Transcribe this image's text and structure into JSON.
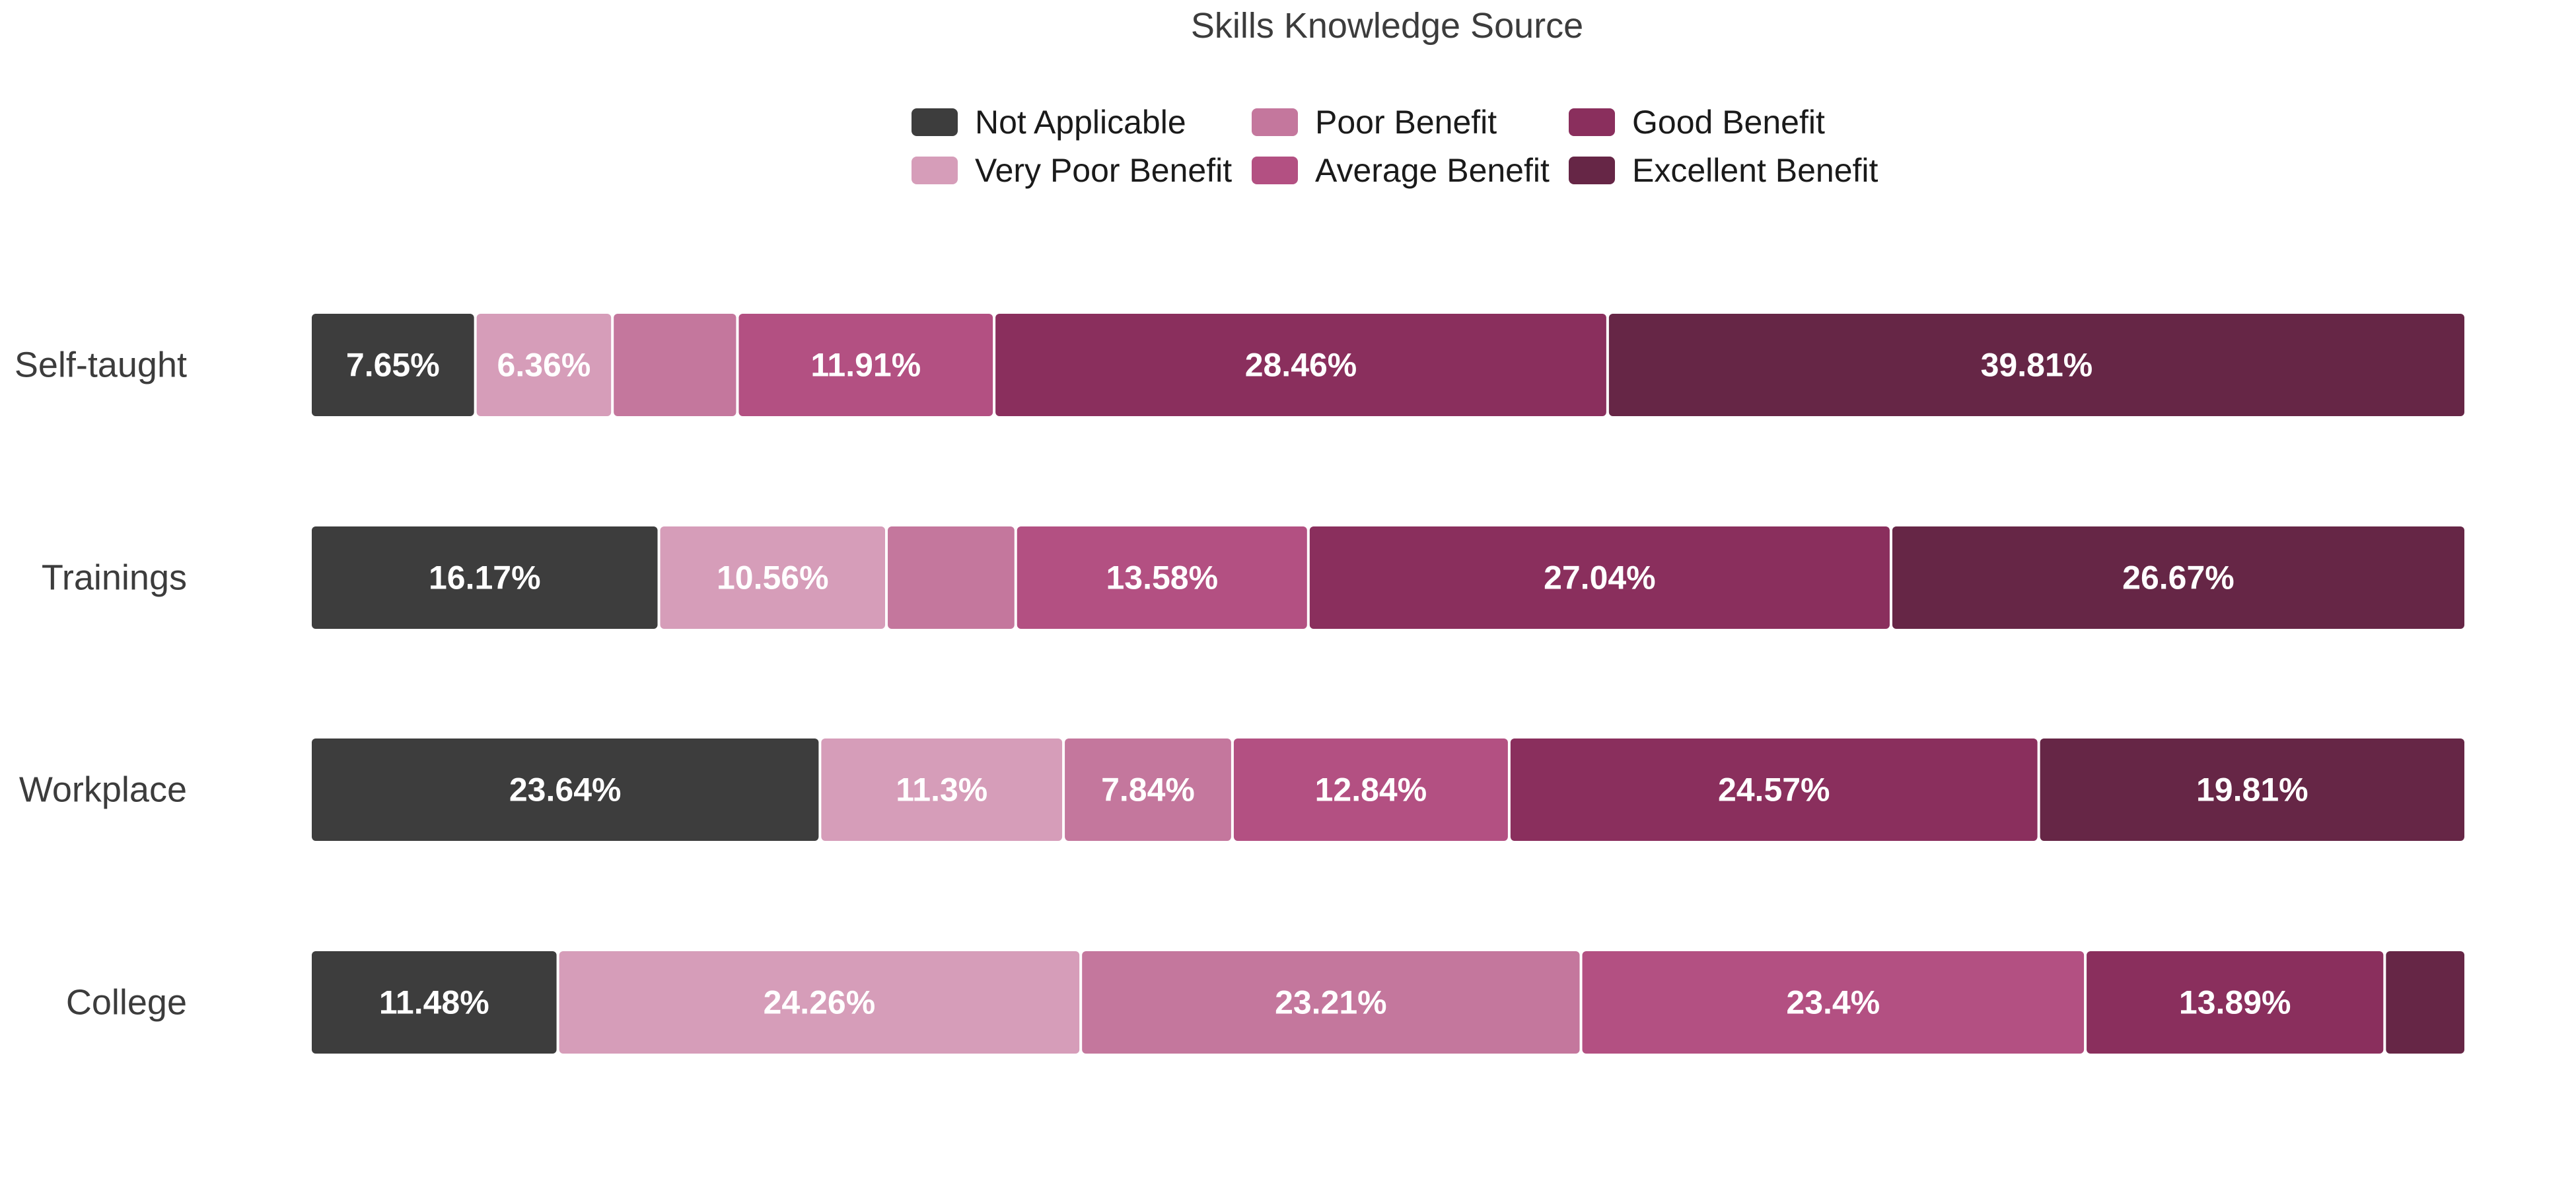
{
  "chart_data": {
    "type": "bar",
    "orientation": "horizontal",
    "stacked": "percent",
    "title": "Skills Knowledge Source",
    "xlabel": "",
    "ylabel": "",
    "grid": false,
    "legend_position": "top",
    "categories": [
      "Self-taught",
      "Trainings",
      "Workplace",
      "College"
    ],
    "series": [
      {
        "name": "Not Applicable",
        "color": "#3d3d3d",
        "values": [
          7.65,
          16.17,
          23.64,
          11.48
        ],
        "labels": [
          "7.65%",
          "16.17%",
          "23.64%",
          "11.48%"
        ]
      },
      {
        "name": "Very Poor Benefit",
        "color": "#d69db9",
        "values": [
          6.36,
          10.56,
          11.3,
          24.26
        ],
        "labels": [
          "6.36%",
          "10.56%",
          "11.3%",
          "24.26%"
        ]
      },
      {
        "name": "Poor Benefit",
        "color": "#c4779d",
        "values": [
          5.8,
          6.0,
          7.84,
          23.21
        ],
        "labels": [
          "",
          "",
          "7.84%",
          "23.21%"
        ]
      },
      {
        "name": "Average Benefit",
        "color": "#b35082",
        "values": [
          11.91,
          13.58,
          12.84,
          23.4
        ],
        "labels": [
          "11.91%",
          "13.58%",
          "12.84%",
          "23.4%"
        ]
      },
      {
        "name": "Good Benefit",
        "color": "#8a2f5d",
        "values": [
          28.46,
          27.04,
          24.57,
          13.89
        ],
        "labels": [
          "28.46%",
          "27.04%",
          "24.57%",
          "13.89%"
        ]
      },
      {
        "name": "Excellent Benefit",
        "color": "#662646",
        "values": [
          39.81,
          26.67,
          19.81,
          3.76
        ],
        "labels": [
          "39.81%",
          "26.67%",
          "19.81%",
          ""
        ]
      }
    ]
  }
}
